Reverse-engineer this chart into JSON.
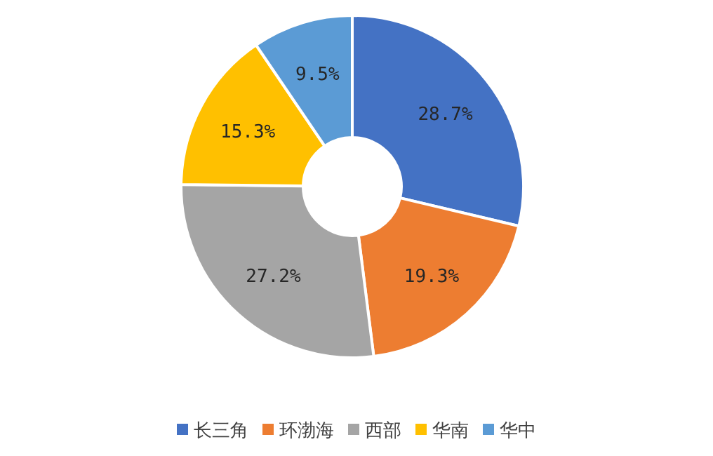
{
  "chart_data": {
    "type": "donut",
    "categories": [
      "长三角",
      "环渤海",
      "西部",
      "华南",
      "华中"
    ],
    "values": [
      28.7,
      19.3,
      27.2,
      15.3,
      9.5
    ],
    "colors": [
      "#4472c4",
      "#ed7d31",
      "#a5a5a5",
      "#ffc000",
      "#5b9bd5"
    ],
    "value_labels": [
      "28.7%",
      "19.3%",
      "27.2%",
      "15.3%",
      "9.5%"
    ],
    "legend": "bottom"
  }
}
